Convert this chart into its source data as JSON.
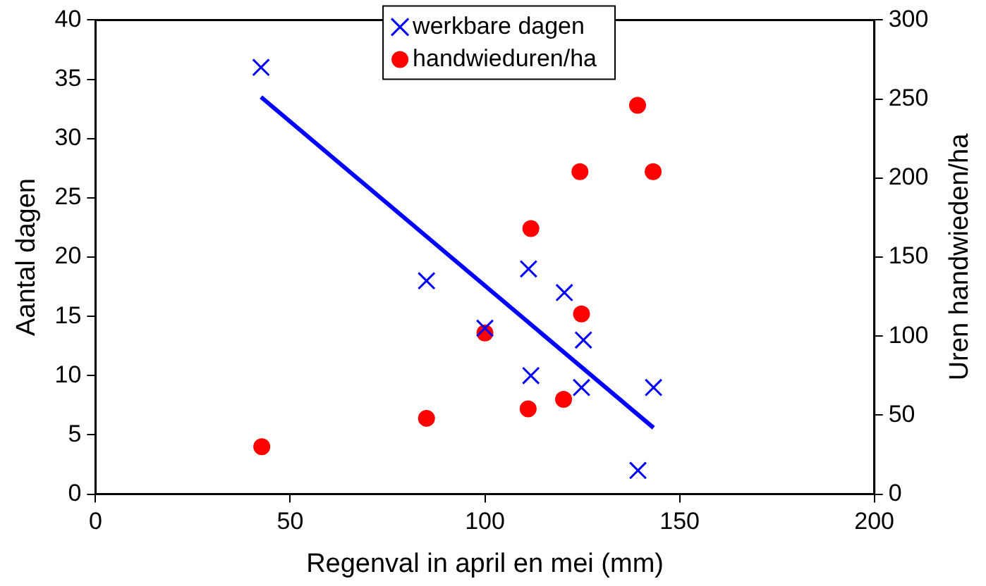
{
  "chart_data": {
    "type": "scatter",
    "xlabel": "Regenval in april en mei (mm)",
    "ylabel": "Aantal dagen",
    "y2label": "Uren handwieden/ha",
    "xlim": [
      0,
      200
    ],
    "xticks": [
      0,
      50,
      100,
      150,
      200
    ],
    "ylim": [
      0,
      40
    ],
    "yticks": [
      0,
      5,
      10,
      15,
      20,
      25,
      30,
      35,
      40
    ],
    "y2lim": [
      0,
      300
    ],
    "y2ticks": [
      0,
      50,
      100,
      150,
      200,
      250,
      300
    ],
    "grid": false,
    "legend": "top",
    "series": [
      {
        "name": "werkbare dagen",
        "marker": "cross",
        "color": "#0000ff",
        "x": [
          42.5,
          85,
          100,
          111.2,
          111.8,
          120.4,
          125.3,
          124.8,
          139.3,
          143.3
        ],
        "values": [
          36,
          18,
          14,
          19,
          10,
          17,
          13,
          9,
          2,
          9
        ]
      },
      {
        "name": "handwieduren/ha",
        "marker": "circle",
        "axis": "y2",
        "color": "#ff0000",
        "x": [
          42.7,
          85,
          100,
          111.8,
          111.1,
          120.2,
          124.8,
          124.4,
          139.2,
          143.2
        ],
        "values": [
          30,
          48,
          102,
          168,
          54,
          60,
          114,
          204,
          246,
          204
        ]
      },
      {
        "type": "line",
        "marker": "none",
        "line_style": "solid",
        "color": "#0000ff",
        "x": [
          42.5,
          143.3
        ],
        "values": [
          33.5,
          5.6
        ]
      }
    ]
  }
}
